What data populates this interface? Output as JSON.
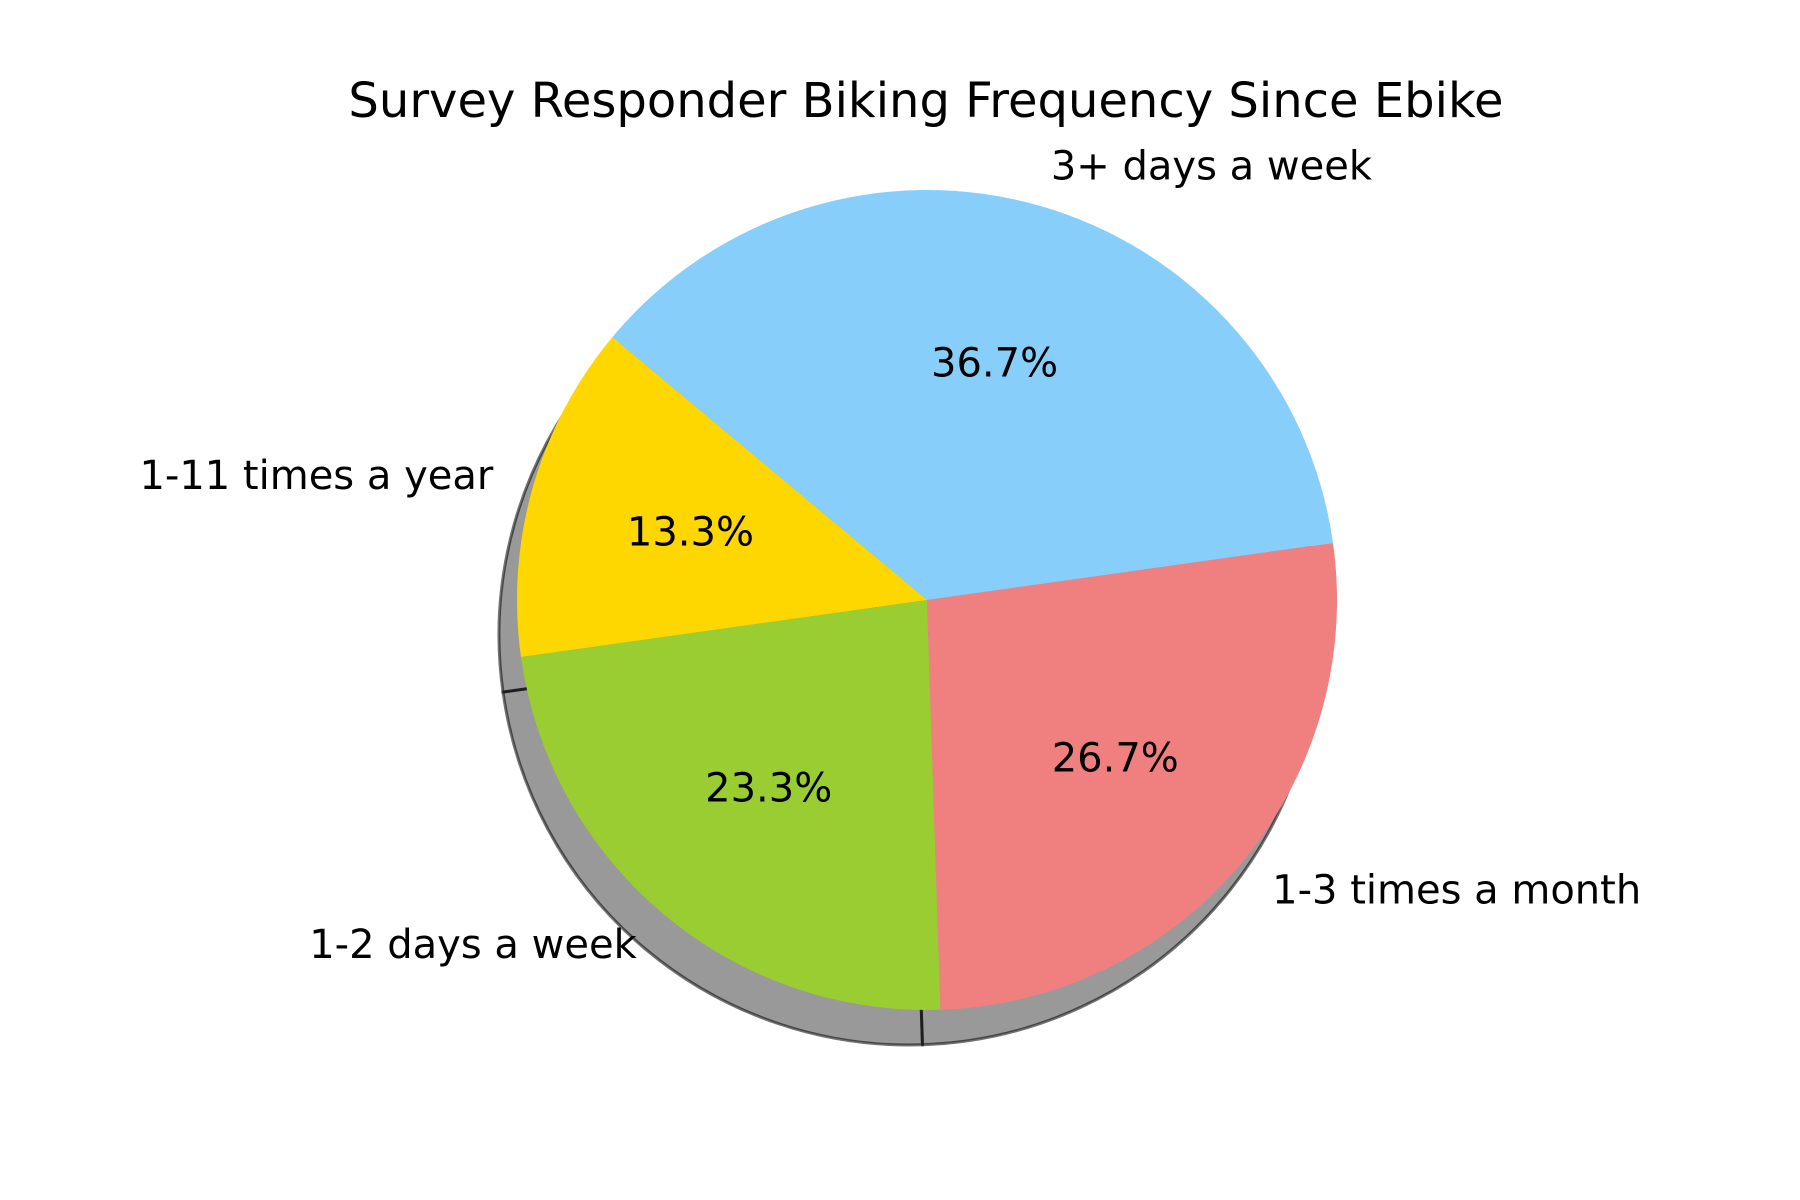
{
  "chart_data": {
    "type": "pie",
    "title": "Survey Responder Biking Frequency Since Ebike",
    "slices": [
      {
        "label": "3+ days a week",
        "value": 36.7,
        "pct_label": "36.7%",
        "color": "#87CEFA"
      },
      {
        "label": "1-11 times a year",
        "value": 13.3,
        "pct_label": "13.3%",
        "color": "#FFD700"
      },
      {
        "label": "1-2 days a week",
        "value": 23.3,
        "pct_label": "23.3%",
        "color": "#9ACD32"
      },
      {
        "label": "1-3 times a month",
        "value": 26.7,
        "pct_label": "26.7%",
        "color": "#F08080"
      }
    ],
    "start_angle_deg": 8,
    "direction": "counterclockwise",
    "shadow": true
  }
}
